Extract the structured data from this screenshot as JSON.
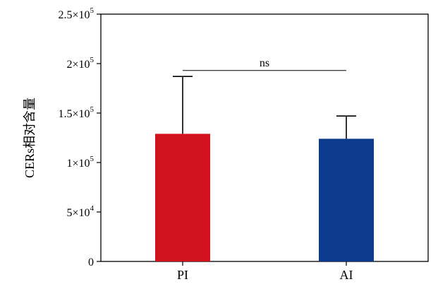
{
  "chart_data": {
    "type": "bar",
    "title": "",
    "xlabel": "",
    "ylabel": "CERs相对含量",
    "categories": [
      "PI",
      "AI"
    ],
    "values": [
      129000,
      124000
    ],
    "error_upper": [
      187000,
      147000
    ],
    "colors": [
      "#d2131f",
      "#0c3a8c"
    ],
    "ylim": [
      0,
      250000
    ],
    "yticks": [
      {
        "value": 0,
        "label": "0",
        "base": "0",
        "exp": ""
      },
      {
        "value": 50000,
        "label": "5×10^4",
        "base": "5×10",
        "exp": "4"
      },
      {
        "value": 100000,
        "label": "1×10^5",
        "base": "1×10",
        "exp": "5"
      },
      {
        "value": 150000,
        "label": "1.5×10^5",
        "base": "1.5×10",
        "exp": "5"
      },
      {
        "value": 200000,
        "label": "2×10^5",
        "base": "2×10",
        "exp": "5"
      },
      {
        "value": 250000,
        "label": "2.5×10^5",
        "base": "2.5×10",
        "exp": "5"
      }
    ],
    "annotation": {
      "text": "ns",
      "between": [
        "PI",
        "AI"
      ],
      "y": 193000
    },
    "grid": false,
    "legend": "none"
  }
}
